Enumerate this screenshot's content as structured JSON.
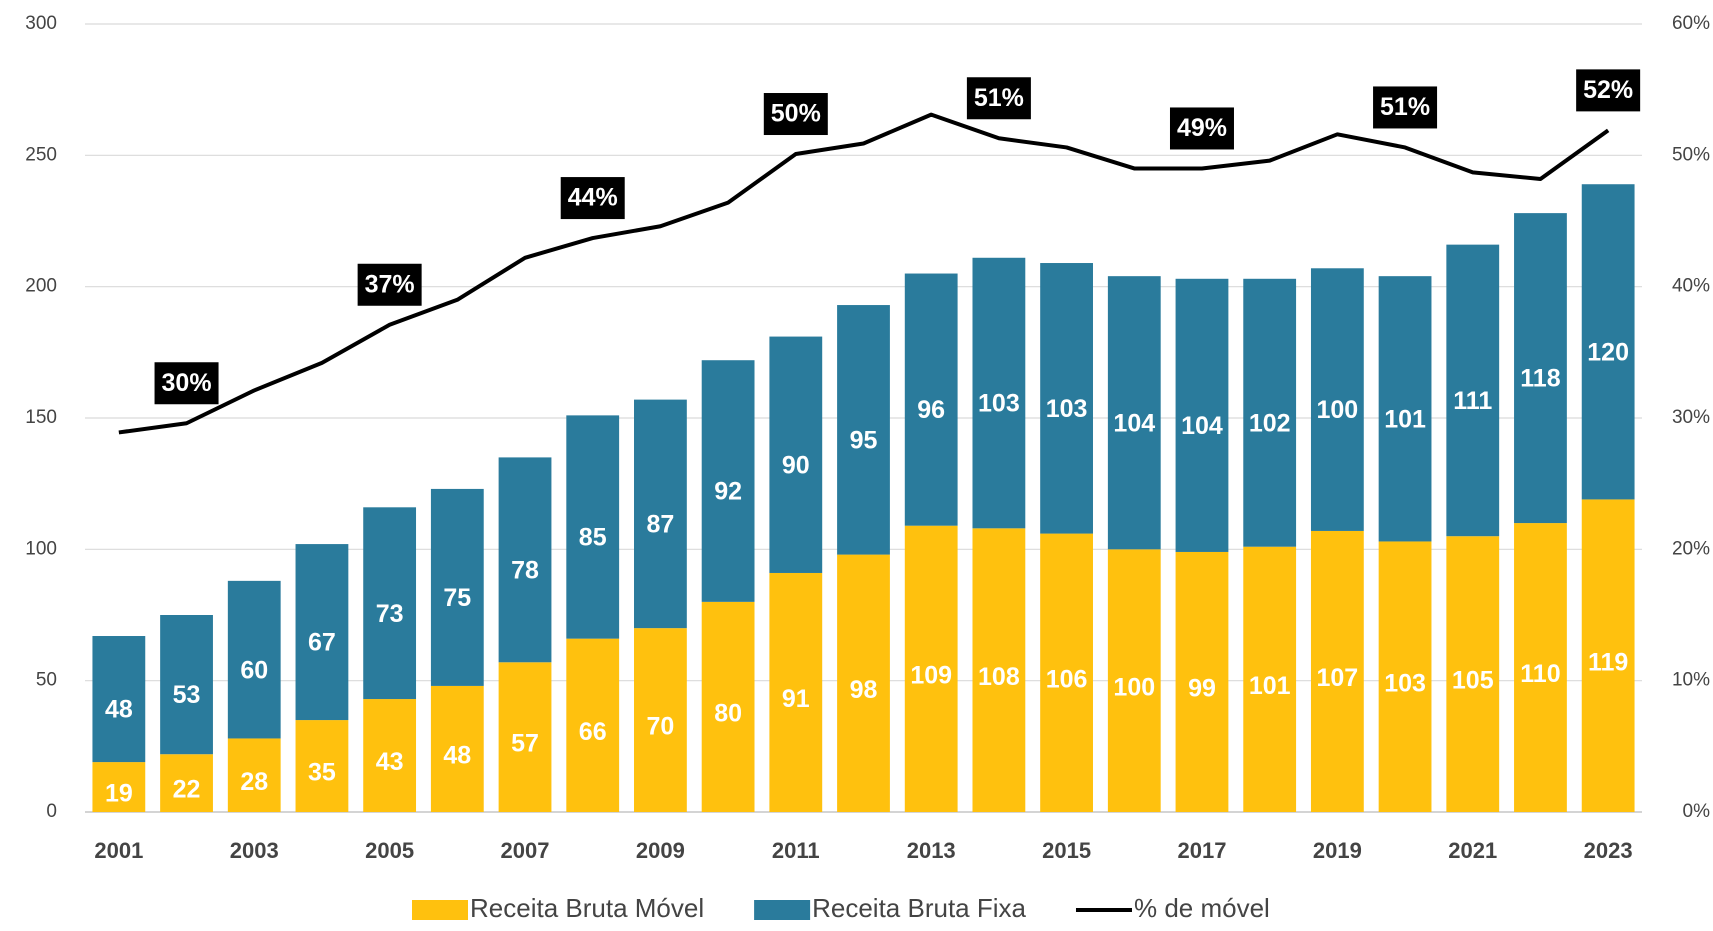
{
  "chart_data": {
    "type": "bar",
    "stacked": true,
    "categories": [
      "2001",
      null,
      "2003",
      null,
      "2005",
      null,
      "2007",
      null,
      "2009",
      null,
      "2011",
      null,
      "2013",
      null,
      "2015",
      null,
      "2017",
      null,
      "2019",
      null,
      "2021",
      null,
      "2023"
    ],
    "series": [
      {
        "name": "Receita Bruta Móvel",
        "color": "#ffc10e",
        "type": "bar",
        "values": [
          19,
          22,
          28,
          35,
          43,
          48,
          57,
          66,
          70,
          80,
          91,
          98,
          109,
          108,
          106,
          100,
          99,
          101,
          107,
          103,
          105,
          110,
          119
        ]
      },
      {
        "name": "Receita Bruta Fixa",
        "color": "#2a7b9c",
        "type": "bar",
        "values": [
          48,
          53,
          60,
          67,
          73,
          75,
          78,
          85,
          87,
          92,
          90,
          95,
          96,
          103,
          103,
          104,
          104,
          102,
          100,
          101,
          111,
          118,
          120
        ]
      },
      {
        "name": "% de móvel",
        "color": "#000000",
        "type": "line",
        "axis": "y2",
        "values": [
          28.9,
          29.6,
          32.1,
          34.2,
          37.1,
          39.0,
          42.2,
          43.7,
          44.6,
          46.4,
          50.1,
          50.9,
          53.1,
          51.3,
          50.6,
          49.0,
          49.0,
          49.6,
          51.6,
          50.6,
          48.7,
          48.2,
          51.9
        ],
        "value_labels": [
          null,
          "30%",
          null,
          null,
          "37%",
          null,
          null,
          "44%",
          null,
          null,
          "50%",
          null,
          null,
          "51%",
          null,
          null,
          "49%",
          null,
          null,
          "51%",
          null,
          null,
          "52%"
        ]
      }
    ],
    "ylim": [
      0,
      300
    ],
    "yticks": [
      0,
      50,
      100,
      150,
      200,
      250,
      300
    ],
    "y2lim": [
      0,
      60
    ],
    "y2ticks": [
      {
        "value": 0,
        "label": "0%"
      },
      {
        "value": 10,
        "label": "10%"
      },
      {
        "value": 20,
        "label": "20%"
      },
      {
        "value": 30,
        "label": "30%"
      },
      {
        "value": 40,
        "label": "40%"
      },
      {
        "value": 50,
        "label": "50%"
      },
      {
        "value": 60,
        "label": "60%"
      }
    ],
    "grid": true,
    "legend": "bottom"
  }
}
